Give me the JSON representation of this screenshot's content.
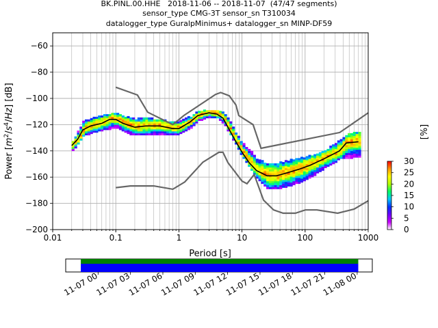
{
  "title": {
    "line1": "BK.PINL.00.HHE   2018-11-06 -- 2018-11-07  (47/47 segments)",
    "line2": "sensor_type CMG-3T sensor_sn T310034",
    "line3": "datalogger_type GuralpMinimus+ datalogger_sn MINP-DF59"
  },
  "chart_data": [
    {
      "type": "heatmap",
      "subtype": "probabilistic-power-spectral-density",
      "xlabel": "Period [s]",
      "ylabel": "Power [m²/s⁴/Hz] [dB]",
      "x_scale": "log",
      "xlim": [
        0.01,
        1000
      ],
      "ylim": [
        -200,
        -50
      ],
      "x_ticks": [
        0.01,
        0.1,
        1,
        10,
        100,
        1000
      ],
      "x_tick_labels": [
        "0.01",
        "0.1",
        "1",
        "10",
        "100",
        "1000"
      ],
      "y_ticks": [
        -200,
        -180,
        -160,
        -140,
        -120,
        -100,
        -80,
        -60
      ],
      "grid": true,
      "colorbar": {
        "label": "[%]",
        "ticks": [
          0,
          5,
          10,
          15,
          20,
          25,
          30
        ],
        "range": [
          0,
          30
        ],
        "colormap": [
          "#ffffff",
          "#c800ff",
          "#6e00ff",
          "#0033ff",
          "#00c8ff",
          "#00ff64",
          "#b4ff00",
          "#ffff00",
          "#ff9600",
          "#ff0000"
        ]
      },
      "colors": {
        "mode_line": "#000000",
        "noise_model": "#666666",
        "grid": "#b0b0b0"
      },
      "mode_curve": [
        [
          0.02,
          -136
        ],
        [
          0.025,
          -131
        ],
        [
          0.03,
          -124
        ],
        [
          0.04,
          -121
        ],
        [
          0.06,
          -119
        ],
        [
          0.08,
          -116
        ],
        [
          0.1,
          -116
        ],
        [
          0.13,
          -119
        ],
        [
          0.2,
          -122
        ],
        [
          0.3,
          -121
        ],
        [
          0.5,
          -121
        ],
        [
          0.8,
          -123
        ],
        [
          1,
          -123
        ],
        [
          1.5,
          -118
        ],
        [
          2,
          -113
        ],
        [
          3,
          -111
        ],
        [
          4,
          -112
        ],
        [
          5,
          -115
        ],
        [
          6,
          -122
        ],
        [
          8,
          -133
        ],
        [
          10,
          -141
        ],
        [
          13,
          -149
        ],
        [
          17,
          -155
        ],
        [
          25,
          -159
        ],
        [
          35,
          -159
        ],
        [
          50,
          -157
        ],
        [
          80,
          -154
        ],
        [
          120,
          -151
        ],
        [
          200,
          -146
        ],
        [
          350,
          -140
        ],
        [
          450,
          -134
        ],
        [
          700,
          -133
        ]
      ],
      "new_high_noise_model": [
        [
          0.1,
          -91.5
        ],
        [
          0.22,
          -97.4
        ],
        [
          0.32,
          -110.5
        ],
        [
          0.8,
          -120
        ],
        [
          1.2,
          -113
        ],
        [
          3.8,
          -97
        ],
        [
          4.6,
          -95.5
        ],
        [
          6.3,
          -98
        ],
        [
          8,
          -105
        ],
        [
          8.9,
          -113
        ],
        [
          15,
          -120
        ],
        [
          20,
          -138
        ],
        [
          354,
          -126
        ],
        [
          1000,
          -111
        ]
      ],
      "new_low_noise_model": [
        [
          0.1,
          -168
        ],
        [
          0.17,
          -166.7
        ],
        [
          0.4,
          -166.7
        ],
        [
          0.8,
          -169.2
        ],
        [
          1.24,
          -163.7
        ],
        [
          2.4,
          -148.6
        ],
        [
          4.3,
          -141.1
        ],
        [
          5,
          -141.1
        ],
        [
          6,
          -149
        ],
        [
          10,
          -163
        ],
        [
          12,
          -165
        ],
        [
          15.6,
          -158
        ],
        [
          21.9,
          -177.5
        ],
        [
          31.6,
          -185
        ],
        [
          45,
          -187.5
        ],
        [
          70,
          -187.5
        ],
        [
          101,
          -185
        ],
        [
          154,
          -185
        ],
        [
          328,
          -187.5
        ],
        [
          600,
          -184.4
        ],
        [
          1000,
          -178
        ]
      ],
      "density_bands": [
        [
          0.02,
          -140,
          -133
        ],
        [
          0.03,
          -128,
          -117
        ],
        [
          0.05,
          -125,
          -114
        ],
        [
          0.08,
          -123,
          -112
        ],
        [
          0.1,
          -122,
          -112
        ],
        [
          0.15,
          -127,
          -115
        ],
        [
          0.2,
          -128,
          -116
        ],
        [
          0.3,
          -128,
          -115
        ],
        [
          0.5,
          -127,
          -117
        ],
        [
          0.8,
          -128,
          -118
        ],
        [
          1,
          -127,
          -118
        ],
        [
          1.5,
          -122,
          -114
        ],
        [
          2,
          -117,
          -110
        ],
        [
          3,
          -114,
          -109
        ],
        [
          4,
          -115,
          -109
        ],
        [
          5,
          -119,
          -111
        ],
        [
          6,
          -126,
          -116
        ],
        [
          8,
          -136,
          -128
        ],
        [
          10,
          -145,
          -135
        ],
        [
          13,
          -153,
          -140
        ],
        [
          17,
          -161,
          -147
        ],
        [
          25,
          -169,
          -150
        ],
        [
          35,
          -169,
          -150
        ],
        [
          50,
          -167,
          -148
        ],
        [
          80,
          -164,
          -146
        ],
        [
          120,
          -160,
          -144
        ],
        [
          200,
          -153,
          -140
        ],
        [
          350,
          -146,
          -132
        ],
        [
          450,
          -146,
          -128
        ],
        [
          700,
          -144,
          -126
        ]
      ]
    },
    {
      "type": "timeline",
      "subtype": "data-coverage",
      "x_tick_labels": [
        "11-07 00",
        "11-07 03",
        "11-07 06",
        "11-07 09",
        "11-07 12",
        "11-07 15",
        "11-07 18",
        "11-07 21",
        "11-08 00"
      ],
      "bars": [
        {
          "name": "coverage",
          "color": "#008000",
          "start_hour": -1.6,
          "end_hour": 24.1
        },
        {
          "name": "psd",
          "color": "#0000ff",
          "start_hour": -1.6,
          "end_hour": 24.1
        }
      ],
      "xlim_hours": [
        -3.0,
        25.4
      ]
    }
  ]
}
